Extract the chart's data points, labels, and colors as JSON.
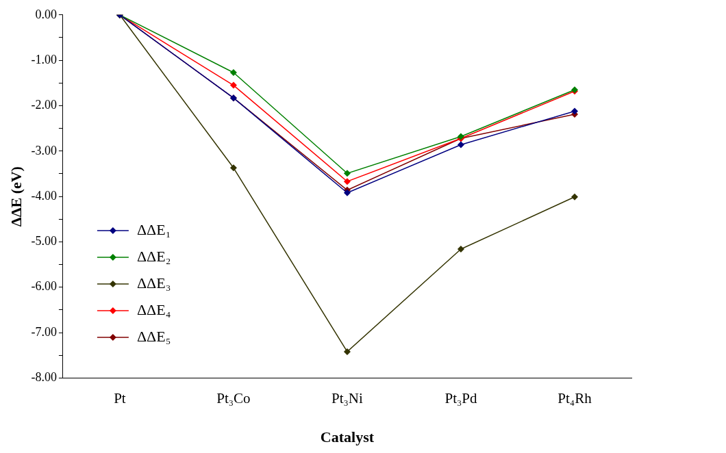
{
  "chart_data": {
    "type": "line",
    "xlabel": "Catalyst",
    "ylabel": "ΔΔE (eV)",
    "categories": [
      "Pt",
      "Pt₃Co",
      "Pt₃Ni",
      "Pt₃Pd",
      "Pt₄Rh"
    ],
    "series": [
      {
        "name": "ΔΔE₁",
        "color": "#000080",
        "values": [
          0,
          -1.83,
          -3.92,
          -2.86,
          -2.12
        ]
      },
      {
        "name": "ΔΔE₂",
        "color": "#008000",
        "values": [
          0,
          -1.27,
          -3.49,
          -2.68,
          -1.65
        ]
      },
      {
        "name": "ΔΔE₃",
        "color": "#333300",
        "values": [
          0,
          -3.37,
          -7.42,
          -5.16,
          -4.01
        ]
      },
      {
        "name": "ΔΔE₄",
        "color": "#ff0000",
        "values": [
          0,
          -1.55,
          -3.67,
          -2.72,
          -1.68
        ]
      },
      {
        "name": "ΔΔE₅",
        "color": "#800000",
        "values": [
          0,
          -1.83,
          -3.86,
          -2.72,
          -2.19
        ]
      }
    ],
    "ylim": [
      -8,
      0
    ],
    "yticks": [
      {
        "value": 0,
        "label": "0.00"
      },
      {
        "value": -0.5,
        "label": null
      },
      {
        "value": -1,
        "label": "-1.00"
      },
      {
        "value": -1.5,
        "label": null
      },
      {
        "value": -2,
        "label": "-2.00"
      },
      {
        "value": -2.5,
        "label": null
      },
      {
        "value": -3,
        "label": "-3.00"
      },
      {
        "value": -3.5,
        "label": null
      },
      {
        "value": -4,
        "label": "-4.00"
      },
      {
        "value": -4.5,
        "label": null
      },
      {
        "value": -5,
        "label": "-5.00"
      },
      {
        "value": -5.5,
        "label": null
      },
      {
        "value": -6,
        "label": "-6.00"
      },
      {
        "value": -6.5,
        "label": null
      },
      {
        "value": -7,
        "label": "-7.00"
      },
      {
        "value": -7.5,
        "label": null
      },
      {
        "value": -8,
        "label": "-8.00"
      }
    ],
    "grid": false,
    "legend": "bottom left",
    "marker": "diamond",
    "line_style": "solid"
  }
}
